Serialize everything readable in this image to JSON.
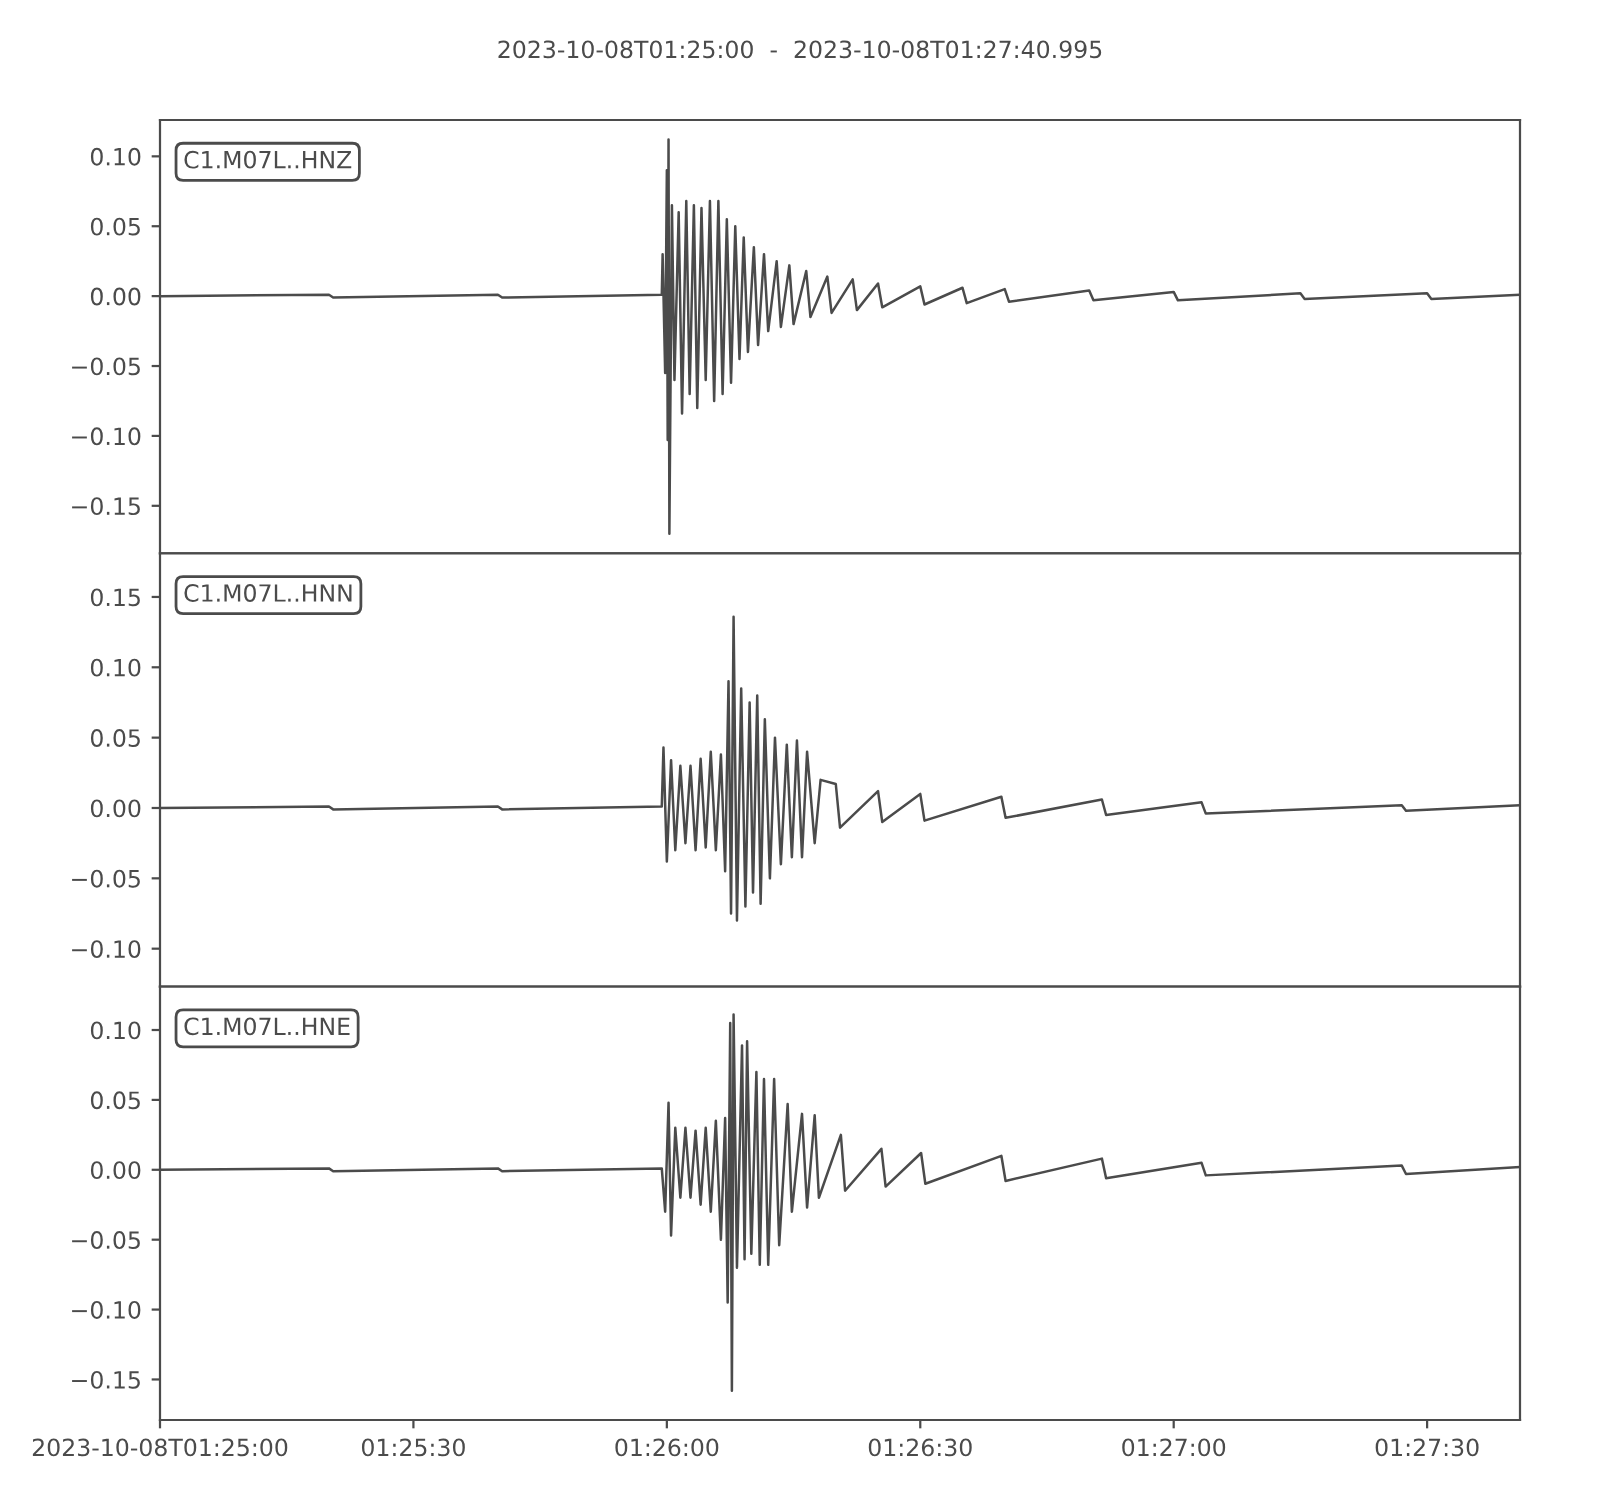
{
  "chart_data": [
    {
      "type": "line",
      "title": "2023-10-08T01:25:00  -  2023-10-08T01:27:40.995",
      "annotations": [
        "C1.M07L..HNZ"
      ],
      "tick_labels": "y",
      "xlim": [
        "2023-10-08T01:25:00",
        "2023-10-08T01:27:40.995"
      ],
      "ylim": [
        -0.184,
        0.126
      ],
      "yticks": [
        {
          "value": -0.15,
          "label": "−0.15"
        },
        {
          "value": -0.1,
          "label": "−0.10"
        },
        {
          "value": -0.05,
          "label": "−0.05"
        },
        {
          "value": 0,
          "label": "0.00"
        },
        {
          "value": 0.05,
          "label": "0.05"
        },
        {
          "value": 0.1,
          "label": "0.10"
        }
      ],
      "series": [
        {
          "color": "#4b4b4b",
          "x": [
            "2023-10-08T01:25:00",
            "2023-10-08T01:25:20",
            "2023-10-08T01:25:20.5",
            "2023-10-08T01:25:40",
            "2023-10-08T01:25:40.5",
            "2023-10-08T01:25:59.4",
            "2023-10-08T01:25:59.5",
            "2023-10-08T01:25:59.8",
            "2023-10-08T01:26:00",
            "2023-10-08T01:26:00.1",
            "2023-10-08T01:26:00.2",
            "2023-10-08T01:26:00.3",
            "2023-10-08T01:26:00.6",
            "2023-10-08T01:26:00.9",
            "2023-10-08T01:26:01.4",
            "2023-10-08T01:26:01.8",
            "2023-10-08T01:26:02.3",
            "2023-10-08T01:26:02.7",
            "2023-10-08T01:26:03.2",
            "2023-10-08T01:26:03.6",
            "2023-10-08T01:26:04.1",
            "2023-10-08T01:26:04.6",
            "2023-10-08T01:26:05.1",
            "2023-10-08T01:26:05.6",
            "2023-10-08T01:26:06.1",
            "2023-10-08T01:26:06.6",
            "2023-10-08T01:26:07.1",
            "2023-10-08T01:26:07.6",
            "2023-10-08T01:26:08.1",
            "2023-10-08T01:26:08.6",
            "2023-10-08T01:26:09.1",
            "2023-10-08T01:26:09.6",
            "2023-10-08T01:26:10.3",
            "2023-10-08T01:26:10.8",
            "2023-10-08T01:26:11.5",
            "2023-10-08T01:26:12",
            "2023-10-08T01:26:13",
            "2023-10-08T01:26:13.5",
            "2023-10-08T01:26:14.5",
            "2023-10-08T01:26:15",
            "2023-10-08T01:26:16.5",
            "2023-10-08T01:26:17",
            "2023-10-08T01:26:19",
            "2023-10-08T01:26:19.5",
            "2023-10-08T01:26:22",
            "2023-10-08T01:26:22.5",
            "2023-10-08T01:26:25",
            "2023-10-08T01:26:25.5",
            "2023-10-08T01:26:30",
            "2023-10-08T01:26:30.5",
            "2023-10-08T01:26:35",
            "2023-10-08T01:26:35.5",
            "2023-10-08T01:26:40",
            "2023-10-08T01:26:40.5",
            "2023-10-08T01:26:50",
            "2023-10-08T01:26:50.5",
            "2023-10-08T01:27:00",
            "2023-10-08T01:27:00.5",
            "2023-10-08T01:27:15",
            "2023-10-08T01:27:15.5",
            "2023-10-08T01:27:30",
            "2023-10-08T01:27:30.5",
            "2023-10-08T01:27:40.9"
          ],
          "values": [
            0,
            0.001,
            -0.001,
            0.001,
            -0.001,
            0.001,
            0.03,
            -0.055,
            0.09,
            -0.103,
            0.112,
            -0.17,
            0.065,
            -0.06,
            0.06,
            -0.084,
            0.068,
            -0.07,
            0.065,
            -0.08,
            0.063,
            -0.06,
            0.068,
            -0.075,
            0.068,
            -0.07,
            0.055,
            -0.062,
            0.05,
            -0.045,
            0.042,
            -0.04,
            0.035,
            -0.035,
            0.03,
            -0.025,
            0.025,
            -0.022,
            0.022,
            -0.02,
            0.018,
            -0.015,
            0.014,
            -0.012,
            0.012,
            -0.01,
            0.009,
            -0.008,
            0.007,
            -0.006,
            0.006,
            -0.005,
            0.005,
            -0.004,
            0.004,
            -0.003,
            0.003,
            -0.003,
            0.002,
            -0.002,
            0.002,
            -0.002,
            0.001
          ]
        }
      ]
    },
    {
      "type": "line",
      "annotations": [
        "C1.M07L..HNN"
      ],
      "tick_labels": "y",
      "xlim": [
        "2023-10-08T01:25:00",
        "2023-10-08T01:27:40.995"
      ],
      "ylim": [
        -0.127,
        0.181
      ],
      "yticks": [
        {
          "value": -0.1,
          "label": "−0.10"
        },
        {
          "value": -0.05,
          "label": "−0.05"
        },
        {
          "value": 0,
          "label": "0.00"
        },
        {
          "value": 0.05,
          "label": "0.05"
        },
        {
          "value": 0.1,
          "label": "0.10"
        },
        {
          "value": 0.15,
          "label": "0.15"
        }
      ],
      "series": [
        {
          "color": "#4b4b4b",
          "x": [
            "2023-10-08T01:25:00",
            "2023-10-08T01:25:20",
            "2023-10-08T01:25:20.5",
            "2023-10-08T01:25:40",
            "2023-10-08T01:25:40.5",
            "2023-10-08T01:25:59.4",
            "2023-10-08T01:25:59.6",
            "2023-10-08T01:26:00",
            "2023-10-08T01:26:00.5",
            "2023-10-08T01:26:01",
            "2023-10-08T01:26:01.6",
            "2023-10-08T01:26:02.2",
            "2023-10-08T01:26:02.8",
            "2023-10-08T01:26:03.4",
            "2023-10-08T01:26:04",
            "2023-10-08T01:26:04.6",
            "2023-10-08T01:26:05.2",
            "2023-10-08T01:26:05.8",
            "2023-10-08T01:26:06.4",
            "2023-10-08T01:26:06.9",
            "2023-10-08T01:26:07.3",
            "2023-10-08T01:26:07.6",
            "2023-10-08T01:26:07.9",
            "2023-10-08T01:26:08.3",
            "2023-10-08T01:26:08.8",
            "2023-10-08T01:26:09.3",
            "2023-10-08T01:26:09.8",
            "2023-10-08T01:26:10.2",
            "2023-10-08T01:26:10.7",
            "2023-10-08T01:26:11.1",
            "2023-10-08T01:26:11.6",
            "2023-10-08T01:26:12.2",
            "2023-10-08T01:26:12.8",
            "2023-10-08T01:26:13.5",
            "2023-10-08T01:26:14.2",
            "2023-10-08T01:26:14.8",
            "2023-10-08T01:26:15.4",
            "2023-10-08T01:26:16",
            "2023-10-08T01:26:16.6",
            "2023-10-08T01:26:17.5",
            "2023-10-08T01:26:18.2",
            "2023-10-08T01:26:20",
            "2023-10-08T01:26:20.5",
            "2023-10-08T01:26:25",
            "2023-10-08T01:26:25.5",
            "2023-10-08T01:26:30",
            "2023-10-08T01:26:30.5",
            "2023-10-08T01:26:39.6",
            "2023-10-08T01:26:40.1",
            "2023-10-08T01:26:51.5",
            "2023-10-08T01:26:52",
            "2023-10-08T01:27:03.3",
            "2023-10-08T01:27:03.8",
            "2023-10-08T01:27:27",
            "2023-10-08T01:27:27.5",
            "2023-10-08T01:27:40.9"
          ],
          "values": [
            0,
            0.001,
            -0.001,
            0.001,
            -0.001,
            0.001,
            0.043,
            -0.038,
            0.034,
            -0.03,
            0.03,
            -0.025,
            0.03,
            -0.03,
            0.035,
            -0.028,
            0.04,
            -0.03,
            0.038,
            -0.045,
            0.09,
            -0.075,
            0.136,
            -0.08,
            0.085,
            -0.07,
            0.075,
            -0.06,
            0.08,
            -0.068,
            0.063,
            -0.05,
            0.05,
            -0.04,
            0.045,
            -0.035,
            0.048,
            -0.035,
            0.04,
            -0.025,
            0.02,
            0.017,
            -0.014,
            0.012,
            -0.01,
            0.01,
            -0.009,
            0.008,
            -0.007,
            0.006,
            -0.005,
            0.004,
            -0.004,
            0.002,
            -0.002,
            0.002
          ]
        }
      ]
    },
    {
      "type": "line",
      "annotations": [
        "C1.M07L..HNE"
      ],
      "xlim": [
        "2023-10-08T01:25:00",
        "2023-10-08T01:27:40.995"
      ],
      "xticks": [
        {
          "value": "2023-10-08T01:25:00",
          "label": "2023-10-08T01:25:00"
        },
        {
          "value": "2023-10-08T01:25:30",
          "label": "01:25:30"
        },
        {
          "value": "2023-10-08T01:26:00",
          "label": "01:26:00"
        },
        {
          "value": "2023-10-08T01:26:30",
          "label": "01:26:30"
        },
        {
          "value": "2023-10-08T01:27:00",
          "label": "01:27:00"
        },
        {
          "value": "2023-10-08T01:27:30",
          "label": "01:27:30"
        }
      ],
      "ylim": [
        -0.179,
        0.131
      ],
      "yticks": [
        {
          "value": -0.15,
          "label": "−0.15"
        },
        {
          "value": -0.1,
          "label": "−0.10"
        },
        {
          "value": -0.05,
          "label": "−0.05"
        },
        {
          "value": 0,
          "label": "0.00"
        },
        {
          "value": 0.05,
          "label": "0.05"
        },
        {
          "value": 0.1,
          "label": "0.10"
        }
      ],
      "series": [
        {
          "color": "#4b4b4b",
          "x": [
            "2023-10-08T01:25:00",
            "2023-10-08T01:25:20",
            "2023-10-08T01:25:20.5",
            "2023-10-08T01:25:40",
            "2023-10-08T01:25:40.5",
            "2023-10-08T01:25:59.4",
            "2023-10-08T01:25:59.8",
            "2023-10-08T01:26:00.2",
            "2023-10-08T01:26:00.5",
            "2023-10-08T01:26:01",
            "2023-10-08T01:26:01.6",
            "2023-10-08T01:26:02.2",
            "2023-10-08T01:26:02.8",
            "2023-10-08T01:26:03.4",
            "2023-10-08T01:26:04",
            "2023-10-08T01:26:04.6",
            "2023-10-08T01:26:05.2",
            "2023-10-08T01:26:05.8",
            "2023-10-08T01:26:06.4",
            "2023-10-08T01:26:06.9",
            "2023-10-08T01:26:07.2",
            "2023-10-08T01:26:07.5",
            "2023-10-08T01:26:07.7",
            "2023-10-08T01:26:07.9",
            "2023-10-08T01:26:08.3",
            "2023-10-08T01:26:08.9",
            "2023-10-08T01:26:09.2",
            "2023-10-08T01:26:09.5",
            "2023-10-08T01:26:10",
            "2023-10-08T01:26:10.6",
            "2023-10-08T01:26:11",
            "2023-10-08T01:26:11.5",
            "2023-10-08T01:26:12",
            "2023-10-08T01:26:12.7",
            "2023-10-08T01:26:13.3",
            "2023-10-08T01:26:14.3",
            "2023-10-08T01:26:14.8",
            "2023-10-08T01:26:16",
            "2023-10-08T01:26:16.6",
            "2023-10-08T01:26:17.5",
            "2023-10-08T01:26:18",
            "2023-10-08T01:26:20.6",
            "2023-10-08T01:26:21.1",
            "2023-10-08T01:26:25.4",
            "2023-10-08T01:26:25.9",
            "2023-10-08T01:26:30.1",
            "2023-10-08T01:26:30.6",
            "2023-10-08T01:26:39.6",
            "2023-10-08T01:26:40.1",
            "2023-10-08T01:26:51.5",
            "2023-10-08T01:26:52",
            "2023-10-08T01:27:03.3",
            "2023-10-08T01:27:03.8",
            "2023-10-08T01:27:27",
            "2023-10-08T01:27:27.5",
            "2023-10-08T01:27:40.9"
          ],
          "values": [
            0,
            0.001,
            -0.001,
            0.001,
            -0.001,
            0.001,
            -0.03,
            0.048,
            -0.047,
            0.03,
            -0.02,
            0.03,
            -0.02,
            0.028,
            -0.025,
            0.03,
            -0.03,
            0.035,
            -0.05,
            0.037,
            -0.095,
            0.105,
            -0.158,
            0.111,
            -0.07,
            0.089,
            -0.064,
            0.092,
            -0.06,
            0.07,
            -0.068,
            0.065,
            -0.068,
            0.065,
            -0.054,
            0.047,
            -0.03,
            0.04,
            -0.027,
            0.039,
            -0.02,
            0.025,
            -0.015,
            0.015,
            -0.012,
            0.012,
            -0.01,
            0.01,
            -0.008,
            0.008,
            -0.006,
            0.005,
            -0.004,
            0.003,
            -0.003,
            0.002
          ]
        }
      ]
    }
  ]
}
